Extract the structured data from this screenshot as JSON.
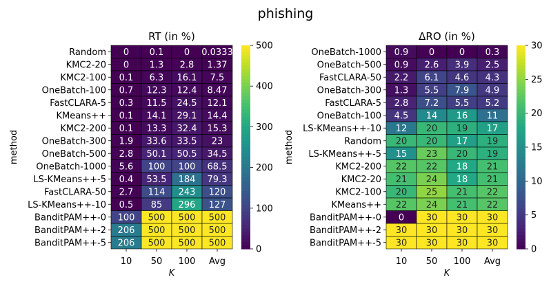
{
  "suptitle": "phishing",
  "chart_data": [
    {
      "type": "heatmap",
      "title": "RT (in %)",
      "xlabel": "K",
      "ylabel": "method",
      "columns": [
        "10",
        "50",
        "100",
        "Avg"
      ],
      "rows": [
        "Random",
        "KMC2-20",
        "KMC2-100",
        "OneBatch-100",
        "FastCLARA-5",
        "KMeans++",
        "KMC2-200",
        "OneBatch-300",
        "OneBatch-500",
        "OneBatch-1000",
        "LS-KMeans++-5",
        "FastCLARA-50",
        "LS-KMeans++-10",
        "BanditPAM++-0",
        "BanditPAM++-2",
        "BanditPAM++-5"
      ],
      "values": [
        [
          0,
          0.1,
          0,
          0.0333
        ],
        [
          0,
          1.3,
          2.8,
          1.37
        ],
        [
          0.1,
          6.3,
          16.1,
          7.5
        ],
        [
          0.7,
          12.3,
          12.4,
          8.47
        ],
        [
          0.3,
          11.5,
          24.5,
          12.1
        ],
        [
          0.1,
          14.1,
          29.1,
          14.4
        ],
        [
          0.1,
          13.3,
          32.4,
          15.3
        ],
        [
          1.9,
          33.6,
          33.5,
          23
        ],
        [
          2.8,
          50.1,
          50.5,
          34.5
        ],
        [
          5.6,
          100,
          100,
          68.5
        ],
        [
          0.4,
          53.5,
          184,
          79.3
        ],
        [
          2.7,
          114,
          243,
          120
        ],
        [
          0.5,
          85,
          296,
          127
        ],
        [
          100,
          500,
          500,
          500
        ],
        [
          206,
          500,
          500,
          500
        ],
        [
          206,
          500,
          500,
          500
        ]
      ],
      "labels": [
        [
          "0",
          "0.1",
          "0",
          "0.0333"
        ],
        [
          "0",
          "1.3",
          "2.8",
          "1.37"
        ],
        [
          "0.1",
          "6.3",
          "16.1",
          "7.5"
        ],
        [
          "0.7",
          "12.3",
          "12.4",
          "8.47"
        ],
        [
          "0.3",
          "11.5",
          "24.5",
          "12.1"
        ],
        [
          "0.1",
          "14.1",
          "29.1",
          "14.4"
        ],
        [
          "0.1",
          "13.3",
          "32.4",
          "15.3"
        ],
        [
          "1.9",
          "33.6",
          "33.5",
          "23"
        ],
        [
          "2.8",
          "50.1",
          "50.5",
          "34.5"
        ],
        [
          "5.6",
          "100",
          "100",
          "68.5"
        ],
        [
          "0.4",
          "53.5",
          "184",
          "79.3"
        ],
        [
          "2.7",
          "114",
          "243",
          "120"
        ],
        [
          "0.5",
          "85",
          "296",
          "127"
        ],
        [
          "100",
          "500",
          "500",
          "500"
        ],
        [
          "206",
          "500",
          "500",
          "500"
        ],
        [
          "206",
          "500",
          "500",
          "500"
        ]
      ],
      "colormap": "viridis",
      "vmin": 0,
      "vmax": 500,
      "colorbar_ticks": [
        0,
        100,
        200,
        300,
        400,
        500
      ],
      "colorbar_tick_labels": [
        "0",
        "100",
        "200",
        "300",
        "400",
        "500"
      ]
    },
    {
      "type": "heatmap",
      "title": "ΔRO (in %)",
      "xlabel": "K",
      "ylabel": "method",
      "columns": [
        "10",
        "50",
        "100",
        "Avg"
      ],
      "rows": [
        "OneBatch-1000",
        "OneBatch-500",
        "FastCLARA-50",
        "OneBatch-300",
        "FastCLARA-5",
        "OneBatch-100",
        "LS-KMeans++-10",
        "Random",
        "LS-KMeans++-5",
        "KMC2-200",
        "KMC2-20",
        "KMC2-100",
        "KMeans++",
        "BanditPAM++-0",
        "BanditPAM++-2",
        "BanditPAM++-5"
      ],
      "values": [
        [
          0.9,
          0,
          0,
          0.3
        ],
        [
          0.9,
          2.6,
          3.9,
          2.5
        ],
        [
          2.2,
          6.1,
          4.6,
          4.3
        ],
        [
          1.3,
          5.5,
          7.9,
          4.9
        ],
        [
          2.8,
          7.2,
          5.5,
          5.2
        ],
        [
          4.5,
          14,
          16,
          11
        ],
        [
          12,
          20,
          19,
          17
        ],
        [
          20,
          20,
          17,
          19
        ],
        [
          15,
          23,
          20,
          19
        ],
        [
          22,
          22,
          18,
          21
        ],
        [
          21,
          24,
          18,
          21
        ],
        [
          20,
          25,
          21,
          22
        ],
        [
          22,
          24,
          21,
          22
        ],
        [
          0,
          30,
          30,
          30
        ],
        [
          30,
          30,
          30,
          30
        ],
        [
          30,
          30,
          30,
          30
        ]
      ],
      "labels": [
        [
          "0.9",
          "0",
          "0",
          "0.3"
        ],
        [
          "0.9",
          "2.6",
          "3.9",
          "2.5"
        ],
        [
          "2.2",
          "6.1",
          "4.6",
          "4.3"
        ],
        [
          "1.3",
          "5.5",
          "7.9",
          "4.9"
        ],
        [
          "2.8",
          "7.2",
          "5.5",
          "5.2"
        ],
        [
          "4.5",
          "14",
          "16",
          "11"
        ],
        [
          "12",
          "20",
          "19",
          "17"
        ],
        [
          "20",
          "20",
          "17",
          "19"
        ],
        [
          "15",
          "23",
          "20",
          "19"
        ],
        [
          "22",
          "22",
          "18",
          "21"
        ],
        [
          "21",
          "24",
          "18",
          "21"
        ],
        [
          "20",
          "25",
          "21",
          "22"
        ],
        [
          "22",
          "24",
          "21",
          "22"
        ],
        [
          "0",
          "30",
          "30",
          "30"
        ],
        [
          "30",
          "30",
          "30",
          "30"
        ],
        [
          "30",
          "30",
          "30",
          "30"
        ]
      ],
      "colormap": "viridis",
      "vmin": 0,
      "vmax": 30,
      "colorbar_ticks": [
        0,
        5,
        10,
        15,
        20,
        25,
        30
      ],
      "colorbar_tick_labels": [
        "0",
        "5",
        "10",
        "15",
        "20",
        "25",
        "30"
      ]
    }
  ]
}
